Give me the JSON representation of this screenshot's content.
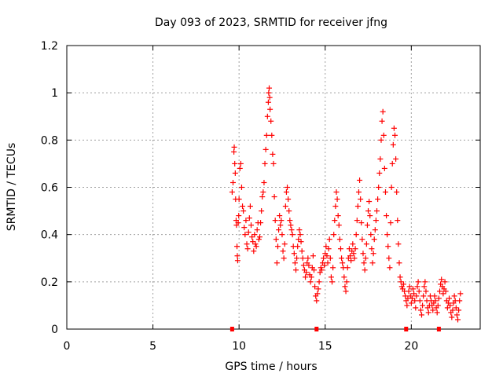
{
  "chart_data": {
    "type": "scatter",
    "title": "Day 093 of 2023, SRMTID for receiver jfng",
    "xlabel": "GPS time / hours",
    "ylabel": "SRMTID / TECUs",
    "xlim": [
      0,
      24
    ],
    "ylim": [
      0,
      1.2
    ],
    "xticks": [
      0,
      5,
      10,
      15,
      20
    ],
    "xtick_labels": [
      "0",
      "5",
      "10",
      "15",
      "20"
    ],
    "yticks": [
      0,
      0.2,
      0.4,
      0.6,
      0.8,
      1.0,
      1.2
    ],
    "ytick_labels": [
      "0",
      "0.2",
      "0.4",
      "0.6",
      "0.8",
      "1",
      "1.2"
    ],
    "grid": true,
    "marker": "+",
    "series_color": "#ff0000",
    "data_gap_markers_x": [
      9.6,
      14.5,
      19.7,
      21.6
    ],
    "series": [
      {
        "name": "SRMTID",
        "points": [
          [
            9.6,
            0.58
          ],
          [
            9.65,
            0.62
          ],
          [
            9.7,
            0.75
          ],
          [
            9.72,
            0.77
          ],
          [
            9.75,
            0.7
          ],
          [
            9.78,
            0.66
          ],
          [
            9.8,
            0.55
          ],
          [
            9.83,
            0.46
          ],
          [
            9.85,
            0.44
          ],
          [
            9.88,
            0.35
          ],
          [
            9.9,
            0.31
          ],
          [
            9.92,
            0.29
          ],
          [
            9.95,
            0.45
          ],
          [
            9.98,
            0.48
          ],
          [
            10.0,
            0.55
          ],
          [
            10.05,
            0.68
          ],
          [
            10.1,
            0.7
          ],
          [
            10.15,
            0.6
          ],
          [
            10.2,
            0.52
          ],
          [
            10.25,
            0.5
          ],
          [
            10.3,
            0.43
          ],
          [
            10.35,
            0.4
          ],
          [
            10.4,
            0.46
          ],
          [
            10.45,
            0.36
          ],
          [
            10.5,
            0.34
          ],
          [
            10.55,
            0.41
          ],
          [
            10.6,
            0.47
          ],
          [
            10.65,
            0.52
          ],
          [
            10.7,
            0.44
          ],
          [
            10.75,
            0.39
          ],
          [
            10.8,
            0.37
          ],
          [
            10.85,
            0.33
          ],
          [
            10.9,
            0.4
          ],
          [
            10.95,
            0.36
          ],
          [
            11.0,
            0.35
          ],
          [
            11.05,
            0.42
          ],
          [
            11.1,
            0.45
          ],
          [
            11.15,
            0.38
          ],
          [
            11.2,
            0.39
          ],
          [
            11.25,
            0.45
          ],
          [
            11.3,
            0.5
          ],
          [
            11.35,
            0.56
          ],
          [
            11.4,
            0.58
          ],
          [
            11.45,
            0.62
          ],
          [
            11.5,
            0.7
          ],
          [
            11.55,
            0.76
          ],
          [
            11.6,
            0.82
          ],
          [
            11.65,
            0.9
          ],
          [
            11.7,
            0.96
          ],
          [
            11.72,
            1.0
          ],
          [
            11.75,
            1.02
          ],
          [
            11.78,
            0.98
          ],
          [
            11.8,
            0.93
          ],
          [
            11.85,
            0.88
          ],
          [
            11.9,
            0.82
          ],
          [
            11.95,
            0.74
          ],
          [
            12.0,
            0.7
          ],
          [
            12.05,
            0.56
          ],
          [
            12.1,
            0.46
          ],
          [
            12.15,
            0.38
          ],
          [
            12.2,
            0.28
          ],
          [
            12.25,
            0.35
          ],
          [
            12.3,
            0.42
          ],
          [
            12.35,
            0.48
          ],
          [
            12.4,
            0.44
          ],
          [
            12.45,
            0.46
          ],
          [
            12.5,
            0.4
          ],
          [
            12.55,
            0.33
          ],
          [
            12.6,
            0.3
          ],
          [
            12.65,
            0.36
          ],
          [
            12.7,
            0.52
          ],
          [
            12.75,
            0.58
          ],
          [
            12.8,
            0.6
          ],
          [
            12.85,
            0.55
          ],
          [
            12.9,
            0.5
          ],
          [
            12.95,
            0.46
          ],
          [
            13.0,
            0.44
          ],
          [
            13.05,
            0.42
          ],
          [
            13.1,
            0.4
          ],
          [
            13.15,
            0.35
          ],
          [
            13.2,
            0.32
          ],
          [
            13.25,
            0.28
          ],
          [
            13.3,
            0.25
          ],
          [
            13.35,
            0.3
          ],
          [
            13.4,
            0.35
          ],
          [
            13.45,
            0.38
          ],
          [
            13.5,
            0.42
          ],
          [
            13.55,
            0.4
          ],
          [
            13.6,
            0.37
          ],
          [
            13.65,
            0.33
          ],
          [
            13.7,
            0.3
          ],
          [
            13.75,
            0.27
          ],
          [
            13.8,
            0.25
          ],
          [
            13.85,
            0.22
          ],
          [
            13.9,
            0.24
          ],
          [
            13.95,
            0.28
          ],
          [
            14.0,
            0.3
          ],
          [
            14.05,
            0.27
          ],
          [
            14.1,
            0.23
          ],
          [
            14.15,
            0.2
          ],
          [
            14.2,
            0.22
          ],
          [
            14.25,
            0.26
          ],
          [
            14.3,
            0.31
          ],
          [
            14.35,
            0.25
          ],
          [
            14.4,
            0.18
          ],
          [
            14.45,
            0.14
          ],
          [
            14.5,
            0.12
          ],
          [
            14.55,
            0.15
          ],
          [
            14.6,
            0.17
          ],
          [
            14.65,
            0.2
          ],
          [
            14.7,
            0.24
          ],
          [
            14.75,
            0.26
          ],
          [
            14.8,
            0.25
          ],
          [
            14.85,
            0.28
          ],
          [
            14.9,
            0.3
          ],
          [
            14.95,
            0.27
          ],
          [
            15.0,
            0.32
          ],
          [
            15.05,
            0.35
          ],
          [
            15.1,
            0.31
          ],
          [
            15.15,
            0.28
          ],
          [
            15.2,
            0.34
          ],
          [
            15.25,
            0.38
          ],
          [
            15.3,
            0.3
          ],
          [
            15.35,
            0.22
          ],
          [
            15.4,
            0.2
          ],
          [
            15.45,
            0.26
          ],
          [
            15.5,
            0.4
          ],
          [
            15.55,
            0.46
          ],
          [
            15.6,
            0.52
          ],
          [
            15.65,
            0.58
          ],
          [
            15.7,
            0.55
          ],
          [
            15.75,
            0.48
          ],
          [
            15.8,
            0.44
          ],
          [
            15.85,
            0.38
          ],
          [
            15.9,
            0.34
          ],
          [
            15.95,
            0.3
          ],
          [
            16.0,
            0.28
          ],
          [
            16.05,
            0.26
          ],
          [
            16.1,
            0.22
          ],
          [
            16.15,
            0.18
          ],
          [
            16.2,
            0.16
          ],
          [
            16.25,
            0.2
          ],
          [
            16.3,
            0.26
          ],
          [
            16.35,
            0.3
          ],
          [
            16.4,
            0.34
          ],
          [
            16.45,
            0.31
          ],
          [
            16.5,
            0.29
          ],
          [
            16.55,
            0.33
          ],
          [
            16.6,
            0.36
          ],
          [
            16.65,
            0.32
          ],
          [
            16.7,
            0.3
          ],
          [
            16.75,
            0.34
          ],
          [
            16.8,
            0.4
          ],
          [
            16.85,
            0.46
          ],
          [
            16.9,
            0.52
          ],
          [
            16.95,
            0.58
          ],
          [
            17.0,
            0.63
          ],
          [
            17.05,
            0.55
          ],
          [
            17.1,
            0.45
          ],
          [
            17.15,
            0.38
          ],
          [
            17.2,
            0.32
          ],
          [
            17.25,
            0.28
          ],
          [
            17.3,
            0.25
          ],
          [
            17.35,
            0.3
          ],
          [
            17.4,
            0.36
          ],
          [
            17.45,
            0.44
          ],
          [
            17.5,
            0.5
          ],
          [
            17.55,
            0.54
          ],
          [
            17.6,
            0.48
          ],
          [
            17.65,
            0.4
          ],
          [
            17.7,
            0.34
          ],
          [
            17.75,
            0.28
          ],
          [
            17.8,
            0.32
          ],
          [
            17.85,
            0.38
          ],
          [
            17.9,
            0.42
          ],
          [
            17.95,
            0.46
          ],
          [
            18.0,
            0.5
          ],
          [
            18.05,
            0.55
          ],
          [
            18.1,
            0.6
          ],
          [
            18.15,
            0.66
          ],
          [
            18.2,
            0.72
          ],
          [
            18.25,
            0.8
          ],
          [
            18.3,
            0.88
          ],
          [
            18.35,
            0.92
          ],
          [
            18.4,
            0.82
          ],
          [
            18.45,
            0.68
          ],
          [
            18.5,
            0.58
          ],
          [
            18.55,
            0.48
          ],
          [
            18.6,
            0.4
          ],
          [
            18.65,
            0.35
          ],
          [
            18.7,
            0.3
          ],
          [
            18.75,
            0.26
          ],
          [
            18.8,
            0.45
          ],
          [
            18.85,
            0.6
          ],
          [
            18.9,
            0.7
          ],
          [
            18.95,
            0.78
          ],
          [
            19.0,
            0.85
          ],
          [
            19.05,
            0.82
          ],
          [
            19.1,
            0.72
          ],
          [
            19.15,
            0.58
          ],
          [
            19.2,
            0.46
          ],
          [
            19.25,
            0.36
          ],
          [
            19.3,
            0.28
          ],
          [
            19.35,
            0.22
          ],
          [
            19.4,
            0.2
          ],
          [
            19.45,
            0.18
          ],
          [
            19.5,
            0.17
          ],
          [
            19.55,
            0.19
          ],
          [
            19.6,
            0.16
          ],
          [
            19.65,
            0.14
          ],
          [
            19.7,
            0.12
          ],
          [
            19.75,
            0.1
          ],
          [
            19.8,
            0.13
          ],
          [
            19.85,
            0.16
          ],
          [
            19.9,
            0.18
          ],
          [
            19.95,
            0.14
          ],
          [
            20.0,
            0.11
          ],
          [
            20.05,
            0.13
          ],
          [
            20.1,
            0.17
          ],
          [
            20.15,
            0.15
          ],
          [
            20.2,
            0.12
          ],
          [
            20.25,
            0.09
          ],
          [
            20.3,
            0.14
          ],
          [
            20.35,
            0.18
          ],
          [
            20.4,
            0.2
          ],
          [
            20.45,
            0.16
          ],
          [
            20.5,
            0.12
          ],
          [
            20.55,
            0.08
          ],
          [
            20.6,
            0.06
          ],
          [
            20.65,
            0.1
          ],
          [
            20.7,
            0.14
          ],
          [
            20.75,
            0.18
          ],
          [
            20.8,
            0.2
          ],
          [
            20.85,
            0.16
          ],
          [
            20.9,
            0.12
          ],
          [
            20.95,
            0.09
          ],
          [
            21.0,
            0.07
          ],
          [
            21.05,
            0.1
          ],
          [
            21.1,
            0.14
          ],
          [
            21.15,
            0.12
          ],
          [
            21.2,
            0.1
          ],
          [
            21.25,
            0.08
          ],
          [
            21.3,
            0.11
          ],
          [
            21.35,
            0.14
          ],
          [
            21.4,
            0.12
          ],
          [
            21.45,
            0.09
          ],
          [
            21.5,
            0.07
          ],
          [
            21.55,
            0.1
          ],
          [
            21.6,
            0.13
          ],
          [
            21.65,
            0.16
          ],
          [
            21.7,
            0.19
          ],
          [
            21.75,
            0.21
          ],
          [
            21.8,
            0.18
          ],
          [
            21.85,
            0.15
          ],
          [
            21.9,
            0.17
          ],
          [
            21.95,
            0.2
          ],
          [
            22.0,
            0.16
          ],
          [
            22.05,
            0.12
          ],
          [
            22.1,
            0.09
          ],
          [
            22.15,
            0.11
          ],
          [
            22.2,
            0.13
          ],
          [
            22.25,
            0.1
          ],
          [
            22.3,
            0.07
          ],
          [
            22.35,
            0.05
          ],
          [
            22.4,
            0.08
          ],
          [
            22.45,
            0.11
          ],
          [
            22.5,
            0.14
          ],
          [
            22.55,
            0.12
          ],
          [
            22.6,
            0.09
          ],
          [
            22.65,
            0.06
          ],
          [
            22.7,
            0.04
          ],
          [
            22.75,
            0.08
          ],
          [
            22.8,
            0.12
          ],
          [
            22.85,
            0.15
          ]
        ]
      }
    ]
  }
}
